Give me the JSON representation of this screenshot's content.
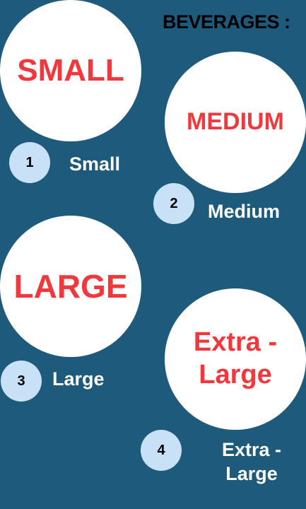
{
  "header": {
    "title": "BEVERAGES :"
  },
  "sizes": [
    {
      "circle_label": "SMALL",
      "badge": "1",
      "caption": "Small"
    },
    {
      "circle_label": "MEDIUM",
      "badge": "2",
      "caption": "Medium"
    },
    {
      "circle_label": "LARGE",
      "badge": "3",
      "caption": "Large"
    },
    {
      "circle_label": "Extra -\nLarge",
      "badge": "4",
      "caption": "Extra -\nLarge"
    }
  ],
  "colors": {
    "background": "#1e5a7b",
    "circle": "#ffffff",
    "circle_text": "#f2373d",
    "badge": "#c9e1f7",
    "caption": "#ffffff",
    "title": "#000000"
  }
}
